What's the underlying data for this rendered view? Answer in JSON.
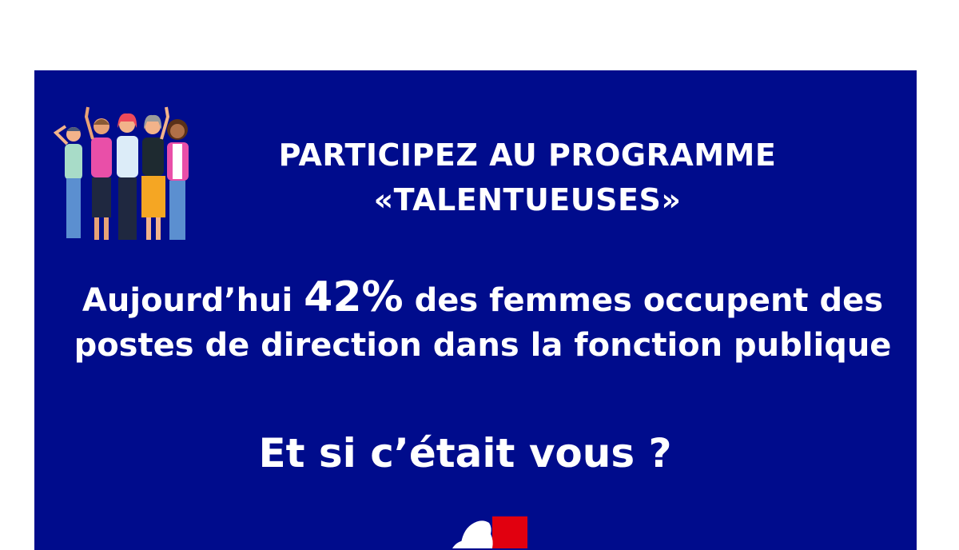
{
  "title": {
    "line1": "PARTICIPEZ AU PROGRAMME",
    "line2": "«TALENTUEUSES»"
  },
  "stat": {
    "prefix": "Aujourd’hui ",
    "value": "42%",
    "suffix": " des femmes occupent des",
    "line2": "postes de direction dans la fonction publique"
  },
  "cta": "Et si c’était vous ?",
  "logo": {
    "name": "marianne-logo"
  },
  "colors": {
    "background": "#000c8c",
    "text": "#ffffff",
    "logo_red": "#e1000f"
  }
}
